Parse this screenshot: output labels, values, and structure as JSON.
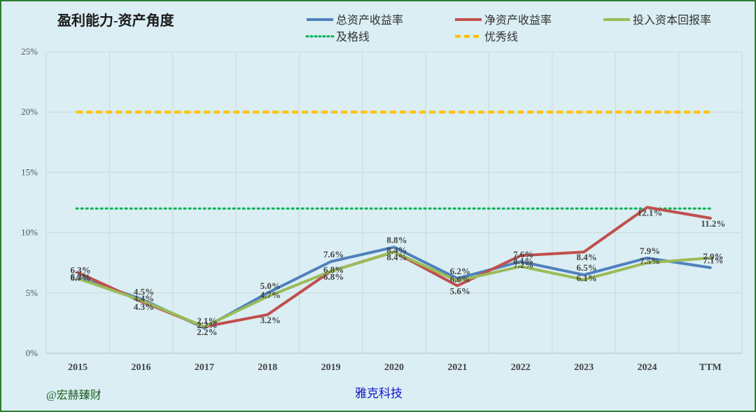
{
  "watermark": "@宏赫臻财",
  "company": "雅克科技",
  "chart_data": {
    "type": "line",
    "title": "盈利能力-资产角度",
    "categories": [
      "2015",
      "2016",
      "2017",
      "2018",
      "2019",
      "2020",
      "2021",
      "2022",
      "2023",
      "2024",
      "TTM"
    ],
    "y_tick_labels": [
      "0%",
      "5%",
      "10%",
      "15%",
      "20%",
      "25%"
    ],
    "ylim": [
      0,
      25
    ],
    "grid": true,
    "legend_position": "top-right",
    "series": [
      {
        "name": "总资产收益率",
        "color": "#4f81bd",
        "values": [
          6.3,
          4.5,
          2.1,
          5.0,
          7.6,
          8.8,
          6.2,
          7.6,
          6.5,
          7.9,
          7.1
        ],
        "labels": [
          "6.3%",
          "4.5%",
          "2.1%",
          "5.0%",
          "7.6%",
          "8.8%",
          "6.2%",
          "7.6%",
          "6.5%",
          "7.9%",
          "7.1%"
        ]
      },
      {
        "name": "净资产收益率",
        "color": "#c0504d",
        "values": [
          6.7,
          4.3,
          2.2,
          3.2,
          6.8,
          8.4,
          5.6,
          8.1,
          8.4,
          12.1,
          11.2
        ],
        "labels": [
          "6.7%",
          "4.3%",
          "2.2%",
          "3.2%",
          "6.8%",
          "8.4%",
          "5.6%",
          "8.1%",
          "8.4%",
          "12.1%",
          "11.2%"
        ]
      },
      {
        "name": "投入资本回报率",
        "color": "#9bbb59",
        "values": [
          6.2,
          4.4,
          2.2,
          4.7,
          6.8,
          8.4,
          6.0,
          7.2,
          6.1,
          7.5,
          7.9
        ],
        "labels": [
          "6.2%",
          "4.4%",
          "2.2%",
          "4.7%",
          "6.8%",
          "8.4%",
          "6.0%",
          "7.2%",
          "6.1%",
          "7.5%",
          "7.9%"
        ]
      }
    ],
    "reference_lines": [
      {
        "name": "及格线",
        "value": 12,
        "color": "#00b050",
        "style": "dotted"
      },
      {
        "name": "优秀线",
        "value": 20,
        "color": "#ffc000",
        "style": "dashed"
      }
    ]
  }
}
